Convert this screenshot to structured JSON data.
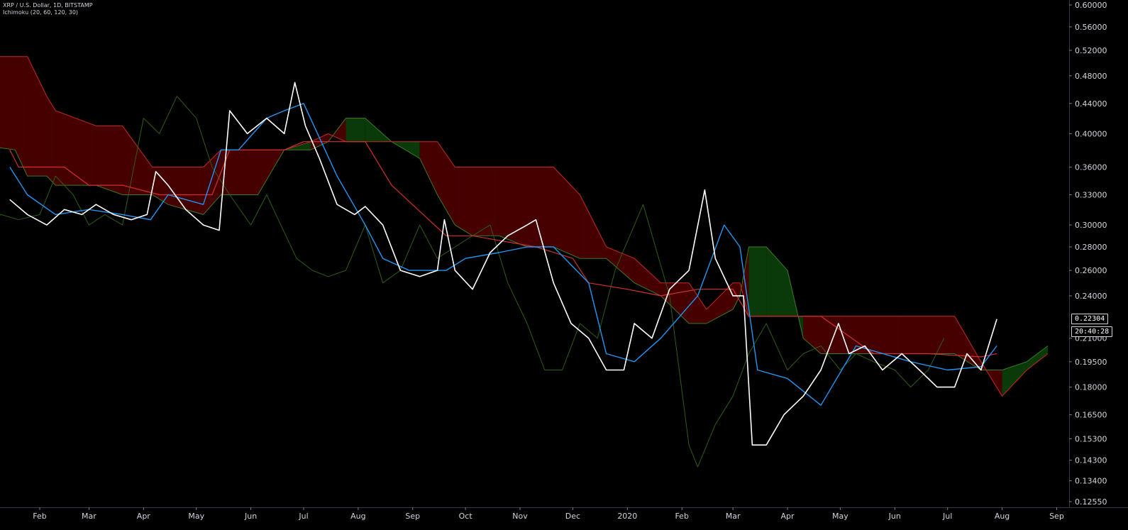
{
  "legend": {
    "symbol": "XRP / U.S. Dollar, 1D, BITSTAMP",
    "indicator": "Ichimoku (20, 60, 120, 30)"
  },
  "price_label": {
    "value": "0.22304"
  },
  "countdown_label": {
    "value": "20:40:28"
  },
  "colors": {
    "background": "#000000",
    "price": "#ffffff",
    "conversion": "#2196f3",
    "base": "#d32f2f",
    "lagging": "#2e5e12",
    "cloud_bear": "#4a0000",
    "cloud_bull": "#0b3d0b",
    "axis_text": "#d1d4dc"
  },
  "chart_data": {
    "type": "line",
    "log_scale": true,
    "grid": false,
    "ylim": [
      0.12,
      0.6
    ],
    "x_ticks": [
      "Feb",
      "Mar",
      "Apr",
      "May",
      "Jun",
      "Jul",
      "Aug",
      "Sep",
      "Oct",
      "Nov",
      "Dec",
      "2020",
      "Feb",
      "Mar",
      "Apr",
      "May",
      "Jun",
      "Jul",
      "Aug",
      "Sep"
    ],
    "y_ticks": [
      "0.60000",
      "0.56000",
      "0.52000",
      "0.48000",
      "0.44000",
      "0.40000",
      "0.36000",
      "0.33000",
      "0.30000",
      "0.28000",
      "0.26000",
      "0.24000",
      "0.22304",
      "0.21000",
      "0.19500",
      "0.18000",
      "0.16500",
      "0.15300",
      "0.14300",
      "0.13400",
      "0.12550"
    ],
    "series": [
      {
        "key": "price",
        "width": 1.6,
        "x": [
          "2019-01-15",
          "2019-01-25",
          "2019-02-05",
          "2019-02-15",
          "2019-02-25",
          "2019-03-05",
          "2019-03-15",
          "2019-03-25",
          "2019-04-03",
          "2019-04-08",
          "2019-04-15",
          "2019-04-25",
          "2019-05-05",
          "2019-05-14",
          "2019-05-20",
          "2019-05-30",
          "2019-06-10",
          "2019-06-20",
          "2019-06-26",
          "2019-07-02",
          "2019-07-10",
          "2019-07-20",
          "2019-07-30",
          "2019-08-05",
          "2019-08-15",
          "2019-08-25",
          "2019-09-05",
          "2019-09-15",
          "2019-09-19",
          "2019-09-25",
          "2019-10-05",
          "2019-10-15",
          "2019-10-25",
          "2019-11-05",
          "2019-11-10",
          "2019-11-20",
          "2019-11-30",
          "2019-12-10",
          "2019-12-20",
          "2019-12-30",
          "2020-01-05",
          "2020-01-15",
          "2020-01-25",
          "2020-02-05",
          "2020-02-14",
          "2020-02-20",
          "2020-03-01",
          "2020-03-07",
          "2020-03-12",
          "2020-03-20",
          "2020-03-30",
          "2020-04-10",
          "2020-04-20",
          "2020-04-30",
          "2020-05-06",
          "2020-05-15",
          "2020-05-25",
          "2020-06-05",
          "2020-06-15",
          "2020-06-25",
          "2020-07-05",
          "2020-07-12",
          "2020-07-20",
          "2020-07-29"
        ],
        "y": [
          0.325,
          0.31,
          0.3,
          0.315,
          0.31,
          0.32,
          0.31,
          0.305,
          0.31,
          0.355,
          0.34,
          0.315,
          0.3,
          0.295,
          0.43,
          0.4,
          0.42,
          0.4,
          0.47,
          0.41,
          0.37,
          0.32,
          0.31,
          0.318,
          0.3,
          0.26,
          0.255,
          0.26,
          0.305,
          0.26,
          0.245,
          0.275,
          0.29,
          0.3,
          0.305,
          0.25,
          0.22,
          0.21,
          0.19,
          0.19,
          0.22,
          0.21,
          0.245,
          0.26,
          0.335,
          0.27,
          0.24,
          0.24,
          0.15,
          0.15,
          0.165,
          0.175,
          0.19,
          0.22,
          0.2,
          0.205,
          0.19,
          0.2,
          0.19,
          0.18,
          0.18,
          0.2,
          0.19,
          0.223
        ]
      },
      {
        "key": "conversion",
        "width": 1.4,
        "x": [
          "2019-01-15",
          "2019-01-25",
          "2019-02-10",
          "2019-03-01",
          "2019-03-20",
          "2019-04-05",
          "2019-04-15",
          "2019-05-05",
          "2019-05-15",
          "2019-05-25",
          "2019-06-10",
          "2019-06-20",
          "2019-07-01",
          "2019-07-20",
          "2019-08-05",
          "2019-08-15",
          "2019-08-30",
          "2019-09-20",
          "2019-10-01",
          "2019-10-20",
          "2019-11-05",
          "2019-11-20",
          "2019-12-10",
          "2019-12-20",
          "2020-01-05",
          "2020-01-20",
          "2020-02-10",
          "2020-02-25",
          "2020-03-05",
          "2020-03-15",
          "2020-04-01",
          "2020-04-20",
          "2020-05-10",
          "2020-06-10",
          "2020-07-01",
          "2020-07-20",
          "2020-07-29"
        ],
        "y": [
          0.36,
          0.33,
          0.31,
          0.315,
          0.31,
          0.305,
          0.33,
          0.32,
          0.38,
          0.38,
          0.42,
          0.43,
          0.44,
          0.35,
          0.3,
          0.27,
          0.26,
          0.26,
          0.27,
          0.275,
          0.28,
          0.28,
          0.25,
          0.2,
          0.195,
          0.21,
          0.24,
          0.3,
          0.28,
          0.19,
          0.185,
          0.17,
          0.205,
          0.195,
          0.19,
          0.192,
          0.205
        ]
      },
      {
        "key": "base",
        "width": 1.2,
        "x": [
          "2019-01-15",
          "2019-01-20",
          "2019-02-15",
          "2019-03-01",
          "2019-03-20",
          "2019-04-10",
          "2019-05-10",
          "2019-05-20",
          "2019-06-20",
          "2019-07-01",
          "2019-08-05",
          "2019-08-20",
          "2019-09-20",
          "2019-10-05",
          "2019-11-10",
          "2019-12-01",
          "2019-12-10",
          "2020-01-01",
          "2020-01-20",
          "2020-02-10",
          "2020-03-01",
          "2020-03-10",
          "2020-04-20",
          "2020-05-20",
          "2020-06-20",
          "2020-07-20",
          "2020-07-29"
        ],
        "y": [
          0.38,
          0.36,
          0.36,
          0.34,
          0.34,
          0.33,
          0.33,
          0.38,
          0.38,
          0.39,
          0.39,
          0.34,
          0.29,
          0.29,
          0.28,
          0.27,
          0.25,
          0.245,
          0.24,
          0.245,
          0.245,
          0.225,
          0.225,
          0.2,
          0.2,
          0.198,
          0.2
        ]
      },
      {
        "key": "lagging",
        "width": 1.0,
        "x": [
          "2018-12-16",
          "2018-12-31",
          "2019-01-10",
          "2019-01-20",
          "2019-02-01",
          "2019-02-10",
          "2019-02-20",
          "2019-03-01",
          "2019-03-10",
          "2019-03-20",
          "2019-04-01",
          "2019-04-10",
          "2019-04-20",
          "2019-05-01",
          "2019-05-10",
          "2019-05-20",
          "2019-06-01",
          "2019-06-10",
          "2019-06-18",
          "2019-06-27",
          "2019-07-06",
          "2019-07-15",
          "2019-07-25",
          "2019-08-05",
          "2019-08-15",
          "2019-08-25",
          "2019-09-05",
          "2019-09-15",
          "2019-09-25",
          "2019-10-05",
          "2019-10-15",
          "2019-10-25",
          "2019-11-05",
          "2019-11-15",
          "2019-11-25",
          "2019-12-05",
          "2019-12-15",
          "2019-12-25",
          "2020-01-10",
          "2020-01-25",
          "2020-02-05",
          "2020-02-10",
          "2020-02-20",
          "2020-03-01",
          "2020-03-10",
          "2020-03-20",
          "2020-04-01",
          "2020-04-10",
          "2020-04-20",
          "2020-05-01",
          "2020-05-10",
          "2020-05-20",
          "2020-06-01",
          "2020-06-10",
          "2020-06-20",
          "2020-06-29"
        ],
        "y": [
          0.31,
          0.3,
          0.31,
          0.305,
          0.31,
          0.35,
          0.33,
          0.3,
          0.31,
          0.3,
          0.42,
          0.4,
          0.45,
          0.42,
          0.36,
          0.33,
          0.3,
          0.33,
          0.3,
          0.27,
          0.26,
          0.255,
          0.26,
          0.3,
          0.25,
          0.26,
          0.3,
          0.27,
          0.28,
          0.29,
          0.3,
          0.25,
          0.22,
          0.19,
          0.19,
          0.22,
          0.21,
          0.26,
          0.32,
          0.24,
          0.15,
          0.14,
          0.16,
          0.175,
          0.2,
          0.22,
          0.19,
          0.2,
          0.205,
          0.19,
          0.2,
          0.195,
          0.19,
          0.18,
          0.19,
          0.21
        ]
      }
    ],
    "cloud": {
      "x": [
        "2018-12-16",
        "2019-01-18",
        "2019-01-25",
        "2019-02-05",
        "2019-02-10",
        "2019-03-05",
        "2019-03-20",
        "2019-04-06",
        "2019-04-15",
        "2019-05-05",
        "2019-05-15",
        "2019-06-05",
        "2019-06-20",
        "2019-07-05",
        "2019-07-15",
        "2019-07-25",
        "2019-08-05",
        "2019-08-20",
        "2019-09-05",
        "2019-09-15",
        "2019-09-25",
        "2019-10-05",
        "2019-10-20",
        "2019-11-05",
        "2019-11-20",
        "2019-12-05",
        "2019-12-20",
        "2020-01-05",
        "2020-01-20",
        "2020-02-05",
        "2020-02-15",
        "2020-03-01",
        "2020-03-05",
        "2020-03-10",
        "2020-03-20",
        "2020-04-01",
        "2020-04-10",
        "2020-04-20",
        "2020-05-05",
        "2020-06-05",
        "2020-07-05",
        "2020-07-20",
        "2020-08-01",
        "2020-08-15",
        "2020-08-27"
      ],
      "span_a": [
        0.39,
        0.38,
        0.35,
        0.35,
        0.34,
        0.34,
        0.33,
        0.33,
        0.32,
        0.31,
        0.33,
        0.33,
        0.38,
        0.38,
        0.39,
        0.42,
        0.42,
        0.39,
        0.37,
        0.33,
        0.3,
        0.29,
        0.29,
        0.28,
        0.28,
        0.27,
        0.27,
        0.25,
        0.24,
        0.22,
        0.22,
        0.23,
        0.24,
        0.28,
        0.28,
        0.26,
        0.21,
        0.2,
        0.2,
        0.2,
        0.2,
        0.19,
        0.19,
        0.195,
        0.205
      ],
      "span_b": [
        0.51,
        0.51,
        0.51,
        0.45,
        0.43,
        0.41,
        0.41,
        0.36,
        0.36,
        0.36,
        0.38,
        0.38,
        0.38,
        0.39,
        0.4,
        0.39,
        0.39,
        0.39,
        0.39,
        0.39,
        0.36,
        0.36,
        0.36,
        0.36,
        0.36,
        0.33,
        0.28,
        0.27,
        0.25,
        0.25,
        0.23,
        0.25,
        0.25,
        0.225,
        0.225,
        0.225,
        0.225,
        0.225,
        0.225,
        0.225,
        0.225,
        0.195,
        0.175,
        0.19,
        0.2
      ]
    }
  }
}
